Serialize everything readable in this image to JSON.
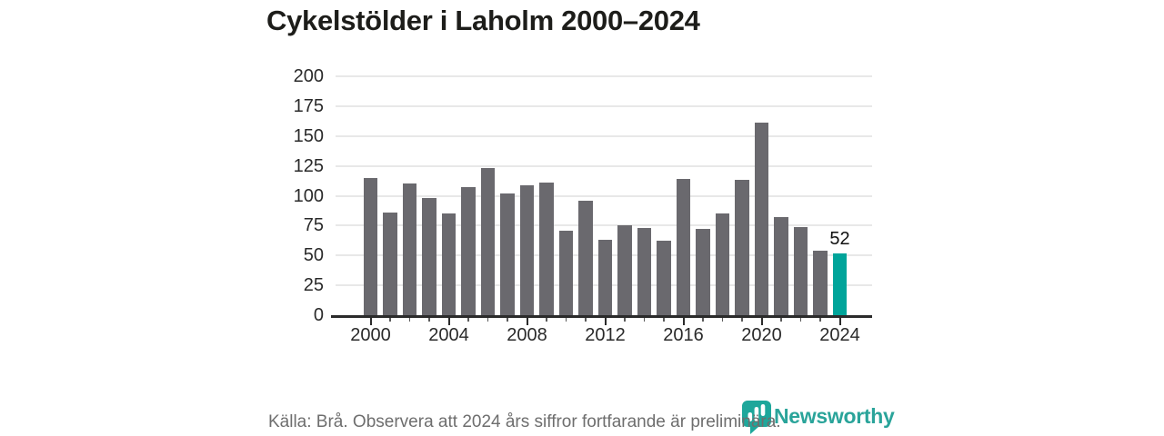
{
  "title": "Cykelstölder i Laholm 2000–2024",
  "footer": {
    "source_note": "Källa: Brå. Observera att 2024 års siffror fortfarande är preliminära."
  },
  "branding": {
    "logo_text": "Newsworthy",
    "logo_icon": "bar-chart-bubble-icon",
    "brand_color": "#2aa49a"
  },
  "colors": {
    "bar_default": "#6a696e",
    "bar_highlight": "#00a49a",
    "gridline": "#e8e8e8",
    "axis": "#2b2b2b",
    "axis_label": "#2a2a2a",
    "title_text": "#1d1d1a",
    "footer_text": "#6e6e6e",
    "annotation_text": "#111111"
  },
  "chart_data": {
    "type": "bar",
    "title": "Cykelstölder i Laholm 2000–2024",
    "xlabel": "",
    "ylabel": "",
    "x": [
      2000,
      2001,
      2002,
      2003,
      2004,
      2005,
      2006,
      2007,
      2008,
      2009,
      2010,
      2011,
      2012,
      2013,
      2014,
      2015,
      2016,
      2017,
      2018,
      2019,
      2020,
      2021,
      2022,
      2023,
      2024
    ],
    "values": [
      115,
      86,
      110,
      98,
      85,
      107,
      123,
      102,
      109,
      111,
      71,
      96,
      63,
      75,
      73,
      62,
      114,
      72,
      85,
      113,
      161,
      82,
      74,
      54,
      52
    ],
    "ylim": [
      0,
      200
    ],
    "yticks": [
      0,
      25,
      50,
      75,
      100,
      125,
      150,
      175,
      200
    ],
    "xticks": [
      2000,
      2004,
      2008,
      2012,
      2016,
      2020,
      2024
    ],
    "grid": true,
    "legend": "none",
    "highlight_x": 2024,
    "annotation": {
      "x": 2024,
      "text": "52"
    }
  }
}
